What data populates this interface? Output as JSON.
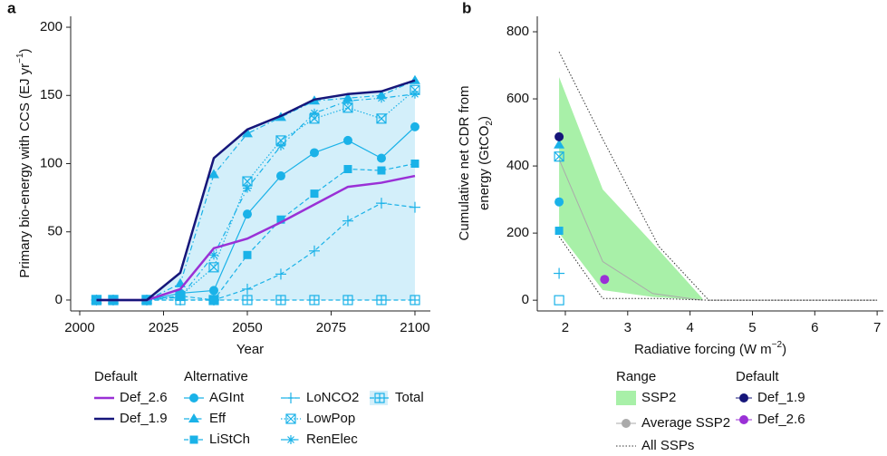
{
  "chart_data": [
    {
      "type": "line",
      "panel": "a",
      "x_label": "Year",
      "y_label": "Primary bio-energy with CCS (EJ yr",
      "y_label_sup": "−1",
      "y_label_end": ")",
      "x": [
        2005,
        2010,
        2020,
        2030,
        2040,
        2050,
        2060,
        2070,
        2080,
        2090,
        2100
      ],
      "xlim": [
        1997.3,
        2104.6
      ],
      "xticks": [
        2000,
        2025,
        2050,
        2075,
        2100
      ],
      "ylim": [
        -8,
        208
      ],
      "yticks": [
        0,
        50,
        100,
        150,
        200
      ],
      "area_color": "#d3effa",
      "legend_titles": [
        "Default",
        "Alternative"
      ],
      "series": [
        {
          "name": "Def_2.6",
          "group": 0,
          "color": "#9a30d6",
          "marker": "none",
          "dash": "solid",
          "width": 2.5,
          "values": [
            0,
            0,
            0,
            8,
            38,
            45,
            57,
            70,
            83,
            86,
            91
          ]
        },
        {
          "name": "Def_1.9",
          "group": 0,
          "color": "#16167a",
          "marker": "none",
          "dash": "solid",
          "width": 2.5,
          "values": [
            0,
            0,
            0,
            20,
            104,
            125,
            135,
            147,
            151,
            153,
            161
          ]
        },
        {
          "name": "AGInt",
          "group": 1,
          "color": "#1ab2e8",
          "marker": "circle",
          "dash": "solid",
          "width": 1.2,
          "values": [
            0,
            0,
            0,
            5,
            7,
            63,
            91,
            108,
            117,
            104,
            127
          ]
        },
        {
          "name": "Eff",
          "group": 1,
          "color": "#1ab2e8",
          "marker": "triangle",
          "dash": "dashdot",
          "width": 1.2,
          "values": [
            0,
            0,
            0,
            12,
            92,
            122,
            134,
            146,
            148,
            150,
            161
          ]
        },
        {
          "name": "LiStCh",
          "group": 1,
          "color": "#1ab2e8",
          "marker": "square",
          "dash": "dashed",
          "width": 1.2,
          "values": [
            0,
            0,
            0,
            3,
            0,
            33,
            59,
            78,
            96,
            95,
            100
          ]
        },
        {
          "name": "LoNCO2",
          "group": 1,
          "color": "#1ab2e8",
          "marker": "plus",
          "dash": "dashed",
          "width": 1.2,
          "values": [
            0,
            0,
            0,
            0,
            0,
            8,
            19,
            36,
            58,
            71,
            68
          ]
        },
        {
          "name": "LowPop",
          "group": 1,
          "color": "#1ab2e8",
          "marker": "boxx",
          "dash": "dotted",
          "width": 1.2,
          "values": [
            0,
            0,
            0,
            3,
            24,
            87,
            117,
            133,
            141,
            133,
            154
          ]
        },
        {
          "name": "RenElec",
          "group": 1,
          "color": "#1ab2e8",
          "marker": "star",
          "dash": "dashdot",
          "width": 1.2,
          "values": [
            0,
            0,
            0,
            2,
            33,
            82,
            113,
            137,
            146,
            148,
            151
          ]
        },
        {
          "name": "Total",
          "group": 1,
          "color": "#1ab2e8",
          "marker": "boxplus",
          "dash": "dashed",
          "width": 1.2,
          "values": [
            0,
            0,
            0,
            0,
            0,
            0,
            0,
            0,
            0,
            0,
            0
          ]
        }
      ]
    },
    {
      "type": "range",
      "panel": "b",
      "x_label": "Radiative forcing (W m",
      "x_label_sup": "−2",
      "x_label_end": ")",
      "y_label": "Cumulative net CDR from",
      "y_label2": "energy (GtCO",
      "y_label2_sub": "2",
      "y_label2_end": ")",
      "xlim": [
        1.55,
        7.1
      ],
      "xticks": [
        2,
        3,
        4,
        5,
        6,
        7
      ],
      "ylim": [
        -32,
        846
      ],
      "yticks": [
        0,
        200,
        400,
        600,
        800
      ],
      "legend_titles": [
        "Range",
        "Default"
      ],
      "range": {
        "name": "SSP2",
        "color": "#a8f0a8",
        "x": [
          1.9,
          2.6,
          3.4,
          4.2
        ],
        "upper": [
          665,
          330,
          170,
          5
        ],
        "lower": [
          200,
          30,
          10,
          0
        ]
      },
      "average": {
        "name": "Average SSP2",
        "color": "#aaaaaa",
        "x": [
          1.9,
          2.6,
          3.4,
          4.2
        ],
        "values": [
          420,
          115,
          20,
          0
        ]
      },
      "all": {
        "name": "All SSPs",
        "color": "#333333",
        "x": [
          1.9,
          2.6,
          3.5,
          4.3,
          7
        ],
        "upper": [
          740,
          480,
          160,
          0,
          0
        ],
        "lower": [
          190,
          5,
          5,
          0,
          0
        ]
      },
      "series": [
        {
          "name": "Def_1.9",
          "color": "#16167a",
          "marker": "circle",
          "x": [
            1.9
          ],
          "values": [
            487
          ]
        },
        {
          "name": "Def_2.6",
          "color": "#9a30d6",
          "marker": "circle",
          "x": [
            2.63
          ],
          "values": [
            62
          ]
        }
      ],
      "points": [
        {
          "x": 1.9,
          "y": 463,
          "marker": "triangle",
          "color": "#1ab2e8"
        },
        {
          "x": 1.9,
          "y": 428,
          "marker": "boxx",
          "color": "#1ab2e8"
        },
        {
          "x": 1.9,
          "y": 293,
          "marker": "circle",
          "color": "#1ab2e8"
        },
        {
          "x": 1.9,
          "y": 207,
          "marker": "square",
          "color": "#1ab2e8"
        },
        {
          "x": 1.9,
          "y": 80,
          "marker": "plus",
          "color": "#1ab2e8"
        },
        {
          "x": 1.9,
          "y": 0,
          "marker": "openSquare",
          "color": "#1ab2e8"
        }
      ]
    }
  ]
}
